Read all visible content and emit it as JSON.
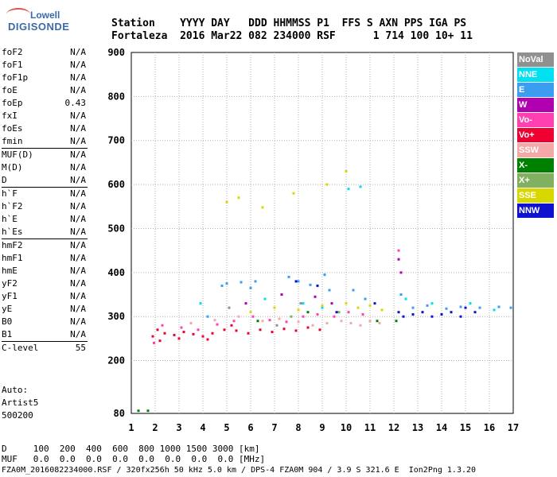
{
  "logo": {
    "line1": "Lowell",
    "line2": "DIGISONDE"
  },
  "header": {
    "line1": "Station    YYYY DAY   DDD HHMMSS P1  FFS S AXN PPS IGA PS",
    "line2": "Fortaleza  2016 Mar22 082 234000 RSF      1 714 100 10+ 11"
  },
  "params": [
    {
      "name": "foF2",
      "value": "N/A"
    },
    {
      "name": "foF1",
      "value": "N/A"
    },
    {
      "name": "foF1p",
      "value": "N/A"
    },
    {
      "name": "foE",
      "value": "N/A"
    },
    {
      "name": "foEp",
      "value": "0.43"
    },
    {
      "name": "fxI",
      "value": "N/A"
    },
    {
      "name": "foEs",
      "value": "N/A"
    },
    {
      "name": "fmin",
      "value": "N/A"
    },
    {
      "name": "MUF(D)",
      "value": "N/A",
      "sep": true
    },
    {
      "name": "M(D)",
      "value": "N/A"
    },
    {
      "name": "D",
      "value": "N/A"
    },
    {
      "name": "h`F",
      "value": "N/A",
      "sep": true
    },
    {
      "name": "h`F2",
      "value": "N/A"
    },
    {
      "name": "h`E",
      "value": "N/A"
    },
    {
      "name": "h`Es",
      "value": "N/A"
    },
    {
      "name": "hmF2",
      "value": "N/A",
      "sep": true
    },
    {
      "name": "hmF1",
      "value": "N/A"
    },
    {
      "name": "hmE",
      "value": "N/A"
    },
    {
      "name": "yF2",
      "value": "N/A"
    },
    {
      "name": "yF1",
      "value": "N/A"
    },
    {
      "name": "yE",
      "value": "N/A"
    },
    {
      "name": "B0",
      "value": "N/A"
    },
    {
      "name": "B1",
      "value": "N/A"
    },
    {
      "name": "C-level",
      "value": "55",
      "sep": true
    }
  ],
  "auto": {
    "line1": "Auto:",
    "line2": "Artist5",
    "line3": "500200"
  },
  "legend": [
    {
      "label": "NoVal",
      "color": "#909090"
    },
    {
      "label": "NNE",
      "color": "#00e0f0"
    },
    {
      "label": "E",
      "color": "#3c9cf0"
    },
    {
      "label": "W",
      "color": "#b000b0"
    },
    {
      "label": "Vo-",
      "color": "#ff40b0"
    },
    {
      "label": "Vo+",
      "color": "#f00030"
    },
    {
      "label": "SSW",
      "color": "#f4a8a8"
    },
    {
      "label": "X-",
      "color": "#008000"
    },
    {
      "label": "X+",
      "color": "#80b060"
    },
    {
      "label": "SSE",
      "color": "#d8d800"
    },
    {
      "label": "NNW",
      "color": "#1010d0"
    }
  ],
  "chart_data": {
    "type": "scatter",
    "xlabel": "",
    "ylabel": "",
    "xlim": [
      1,
      17
    ],
    "ylim": [
      80,
      900
    ],
    "x_ticks": [
      "1",
      "2",
      "3",
      "4",
      "5",
      "6",
      "7",
      "8",
      "9",
      "10",
      "11",
      "12",
      "13",
      "14",
      "15",
      "16",
      "17"
    ],
    "y_ticks": [
      {
        "value": 80,
        "label": "80"
      },
      {
        "value": 200,
        "label": "200"
      },
      {
        "value": 300,
        "label": "300"
      },
      {
        "value": 400,
        "label": "400"
      },
      {
        "value": 500,
        "label": "500"
      },
      {
        "value": 600,
        "label": "600"
      },
      {
        "value": 700,
        "label": "700"
      },
      {
        "value": 800,
        "label": "800"
      },
      {
        "value": 900,
        "label": "900"
      }
    ],
    "grid": true,
    "series": [
      {
        "name": "Vo+",
        "color": "#f00030",
        "points": [
          [
            1.9,
            255
          ],
          [
            2.1,
            270
          ],
          [
            2.4,
            262
          ],
          [
            2.8,
            258
          ],
          [
            3.2,
            265
          ],
          [
            3.6,
            260
          ],
          [
            4.0,
            255
          ],
          [
            4.4,
            262
          ],
          [
            4.9,
            270
          ],
          [
            5.4,
            268
          ],
          [
            5.9,
            262
          ],
          [
            6.4,
            270
          ],
          [
            6.9,
            265
          ],
          [
            7.4,
            272
          ],
          [
            7.9,
            268
          ],
          [
            8.4,
            275
          ],
          [
            8.9,
            270
          ],
          [
            2.2,
            245
          ],
          [
            3.0,
            250
          ],
          [
            4.2,
            248
          ],
          [
            5.2,
            280
          ]
        ]
      },
      {
        "name": "Vo-",
        "color": "#ff40b0",
        "points": [
          [
            1.95,
            240
          ],
          [
            2.3,
            280
          ],
          [
            3.1,
            275
          ],
          [
            3.8,
            270
          ],
          [
            4.6,
            282
          ],
          [
            5.3,
            290
          ],
          [
            6.1,
            300
          ],
          [
            6.8,
            292
          ],
          [
            7.5,
            288
          ],
          [
            8.2,
            300
          ],
          [
            8.8,
            305
          ],
          [
            9.5,
            300
          ],
          [
            10.1,
            310
          ],
          [
            10.7,
            305
          ],
          [
            12.2,
            450
          ]
        ]
      },
      {
        "name": "SSW",
        "color": "#f4a8a8",
        "points": [
          [
            3.5,
            285
          ],
          [
            4.5,
            292
          ],
          [
            5.5,
            300
          ],
          [
            6.5,
            290
          ],
          [
            7.2,
            295
          ],
          [
            8.0,
            288
          ],
          [
            8.6,
            280
          ],
          [
            9.2,
            285
          ],
          [
            9.8,
            290
          ],
          [
            10.2,
            285
          ],
          [
            10.6,
            280
          ],
          [
            11.0,
            290
          ],
          [
            11.4,
            285
          ]
        ]
      },
      {
        "name": "E",
        "color": "#3c9cf0",
        "points": [
          [
            4.2,
            300
          ],
          [
            4.8,
            370
          ],
          [
            5.0,
            375
          ],
          [
            5.6,
            378
          ],
          [
            6.0,
            365
          ],
          [
            6.2,
            380
          ],
          [
            7.6,
            390
          ],
          [
            8.0,
            380
          ],
          [
            8.5,
            372
          ],
          [
            9.1,
            395
          ],
          [
            9.3,
            360
          ],
          [
            10.3,
            360
          ],
          [
            10.8,
            340
          ],
          [
            12.3,
            350
          ],
          [
            12.8,
            320
          ],
          [
            13.4,
            325
          ],
          [
            14.2,
            318
          ],
          [
            14.8,
            322
          ],
          [
            15.6,
            320
          ],
          [
            16.4,
            322
          ],
          [
            16.9,
            320
          ]
        ]
      },
      {
        "name": "NNE",
        "color": "#00e0f0",
        "points": [
          [
            3.9,
            330
          ],
          [
            6.6,
            340
          ],
          [
            8.2,
            330
          ],
          [
            9.0,
            320
          ],
          [
            10.1,
            590
          ],
          [
            10.6,
            595
          ],
          [
            12.5,
            340
          ],
          [
            13.6,
            330
          ],
          [
            15.2,
            330
          ],
          [
            16.2,
            315
          ]
        ]
      },
      {
        "name": "SSE",
        "color": "#d8d800",
        "points": [
          [
            5.0,
            560
          ],
          [
            5.5,
            570
          ],
          [
            6.5,
            548
          ],
          [
            7.8,
            580
          ],
          [
            9.2,
            600
          ],
          [
            10.0,
            630
          ],
          [
            6.0,
            310
          ],
          [
            7.0,
            320
          ],
          [
            8.0,
            315
          ],
          [
            9.0,
            325
          ],
          [
            10.0,
            330
          ],
          [
            10.5,
            320
          ],
          [
            11.0,
            325
          ],
          [
            11.5,
            315
          ]
        ]
      },
      {
        "name": "NNW",
        "color": "#1010d0",
        "points": [
          [
            7.9,
            380
          ],
          [
            8.8,
            370
          ],
          [
            9.6,
            310
          ],
          [
            11.2,
            330
          ],
          [
            12.2,
            310
          ],
          [
            12.4,
            300
          ],
          [
            12.8,
            305
          ],
          [
            13.2,
            310
          ],
          [
            13.6,
            300
          ],
          [
            14.0,
            305
          ],
          [
            14.4,
            310
          ],
          [
            14.8,
            300
          ],
          [
            15.0,
            320
          ],
          [
            15.4,
            310
          ]
        ]
      },
      {
        "name": "W",
        "color": "#b000b0",
        "points": [
          [
            5.8,
            330
          ],
          [
            7.3,
            350
          ],
          [
            8.7,
            345
          ],
          [
            9.4,
            330
          ],
          [
            12.3,
            400
          ],
          [
            12.2,
            430
          ]
        ]
      },
      {
        "name": "X-",
        "color": "#008000",
        "points": [
          [
            1.3,
            86
          ],
          [
            1.7,
            86
          ],
          [
            6.3,
            290
          ],
          [
            8.4,
            310
          ],
          [
            11.3,
            290
          ],
          [
            12.1,
            290
          ]
        ]
      },
      {
        "name": "X+",
        "color": "#80b060",
        "points": [
          [
            7.7,
            300
          ],
          [
            9.7,
            310
          ]
        ]
      },
      {
        "name": "NoVal",
        "color": "#909090",
        "points": [
          [
            5.1,
            320
          ],
          [
            7.1,
            280
          ],
          [
            8.1,
            330
          ]
        ]
      }
    ]
  },
  "bottom": {
    "line1": "D     100  200  400  600  800 1000 1500 3000 [km]",
    "line2": "MUF   0.0  0.0  0.0  0.0  0.0  0.0  0.0  0.0 [MHz]"
  },
  "footer": "FZA0M_2016082234000.RSF / 320fx256h 50 kHz 5.0 km / DPS-4 FZA0M 904 / 3.9 S 321.6 E  Ion2Png 1.3.20"
}
